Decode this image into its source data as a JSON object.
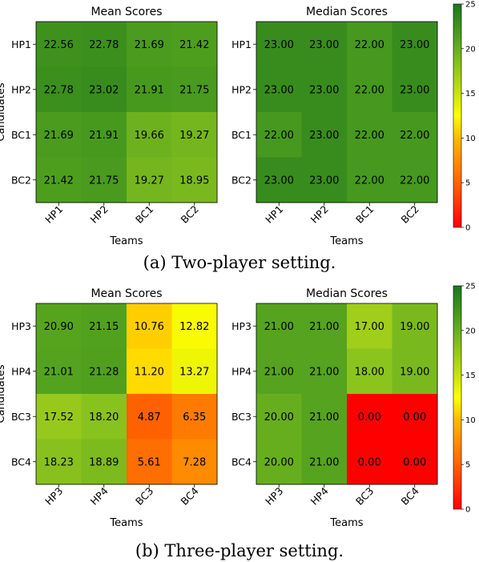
{
  "captions": [
    "(a) Two-player setting.",
    "(b) Three-player setting."
  ],
  "chart_data": [
    {
      "type": "heatmap",
      "title": "Mean Scores",
      "xlabel": "Teams",
      "ylabel": "Candidates",
      "x_categories": [
        "HP1",
        "HP2",
        "BC1",
        "BC2"
      ],
      "y_categories": [
        "HP1",
        "HP2",
        "BC1",
        "BC2"
      ],
      "values": [
        [
          22.56,
          22.78,
          21.69,
          21.42
        ],
        [
          22.78,
          23.02,
          21.91,
          21.75
        ],
        [
          21.69,
          21.91,
          19.66,
          19.27
        ],
        [
          21.42,
          21.75,
          19.27,
          18.95
        ]
      ],
      "labels": [
        [
          "22.56",
          "22.78",
          "21.69",
          "21.42"
        ],
        [
          "22.78",
          "23.02",
          "21.91",
          "21.75"
        ],
        [
          "21.69",
          "21.91",
          "19.66",
          "19.27"
        ],
        [
          "21.42",
          "21.75",
          "19.27",
          "18.95"
        ]
      ],
      "vmin": 0,
      "vmax": 25
    },
    {
      "type": "heatmap",
      "title": "Median Scores",
      "xlabel": "Teams",
      "ylabel": "",
      "x_categories": [
        "HP1",
        "HP2",
        "BC1",
        "BC2"
      ],
      "y_categories": [
        "HP1",
        "HP2",
        "BC1",
        "BC2"
      ],
      "values": [
        [
          23,
          23,
          22,
          23
        ],
        [
          23,
          23,
          22,
          23
        ],
        [
          22,
          23,
          22,
          22
        ],
        [
          23,
          23,
          22,
          22
        ]
      ],
      "labels": [
        [
          "23.00",
          "23.00",
          "22.00",
          "23.00"
        ],
        [
          "23.00",
          "23.00",
          "22.00",
          "23.00"
        ],
        [
          "22.00",
          "23.00",
          "22.00",
          "22.00"
        ],
        [
          "23.00",
          "23.00",
          "22.00",
          "22.00"
        ]
      ],
      "vmin": 0,
      "vmax": 25,
      "colorbar": {
        "ticks": [
          0,
          5,
          10,
          15,
          20,
          25
        ],
        "labels": [
          "0",
          "5",
          "10",
          "15",
          "20",
          "25"
        ]
      }
    },
    {
      "type": "heatmap",
      "title": "Mean Scores",
      "xlabel": "Teams",
      "ylabel": "Candidates",
      "x_categories": [
        "HP3",
        "HP4",
        "BC3",
        "BC4"
      ],
      "y_categories": [
        "HP3",
        "HP4",
        "BC3",
        "BC4"
      ],
      "values": [
        [
          20.9,
          21.15,
          10.76,
          12.82
        ],
        [
          21.01,
          21.28,
          11.2,
          13.27
        ],
        [
          17.52,
          18.2,
          4.87,
          6.35
        ],
        [
          18.23,
          18.89,
          5.61,
          7.28
        ]
      ],
      "labels": [
        [
          "20.90",
          "21.15",
          "10.76",
          "12.82"
        ],
        [
          "21.01",
          "21.28",
          "11.20",
          "13.27"
        ],
        [
          "17.52",
          "18.20",
          "4.87",
          "6.35"
        ],
        [
          "18.23",
          "18.89",
          "5.61",
          "7.28"
        ]
      ],
      "vmin": 0,
      "vmax": 25
    },
    {
      "type": "heatmap",
      "title": "Median Scores",
      "xlabel": "Teams",
      "ylabel": "",
      "x_categories": [
        "HP3",
        "HP4",
        "BC3",
        "BC4"
      ],
      "y_categories": [
        "HP3",
        "HP4",
        "BC3",
        "BC4"
      ],
      "values": [
        [
          21,
          21,
          17,
          19
        ],
        [
          21,
          21,
          18,
          19
        ],
        [
          20,
          21,
          0,
          0
        ],
        [
          20,
          21,
          0,
          0
        ]
      ],
      "labels": [
        [
          "21.00",
          "21.00",
          "17.00",
          "19.00"
        ],
        [
          "21.00",
          "21.00",
          "18.00",
          "19.00"
        ],
        [
          "20.00",
          "21.00",
          "0.00",
          "0.00"
        ],
        [
          "20.00",
          "21.00",
          "0.00",
          "0.00"
        ]
      ],
      "vmin": 0,
      "vmax": 25,
      "colorbar": {
        "ticks": [
          0,
          5,
          10,
          15,
          20,
          25
        ],
        "labels": [
          "0",
          "5",
          "10",
          "15",
          "20",
          "25"
        ]
      }
    }
  ]
}
